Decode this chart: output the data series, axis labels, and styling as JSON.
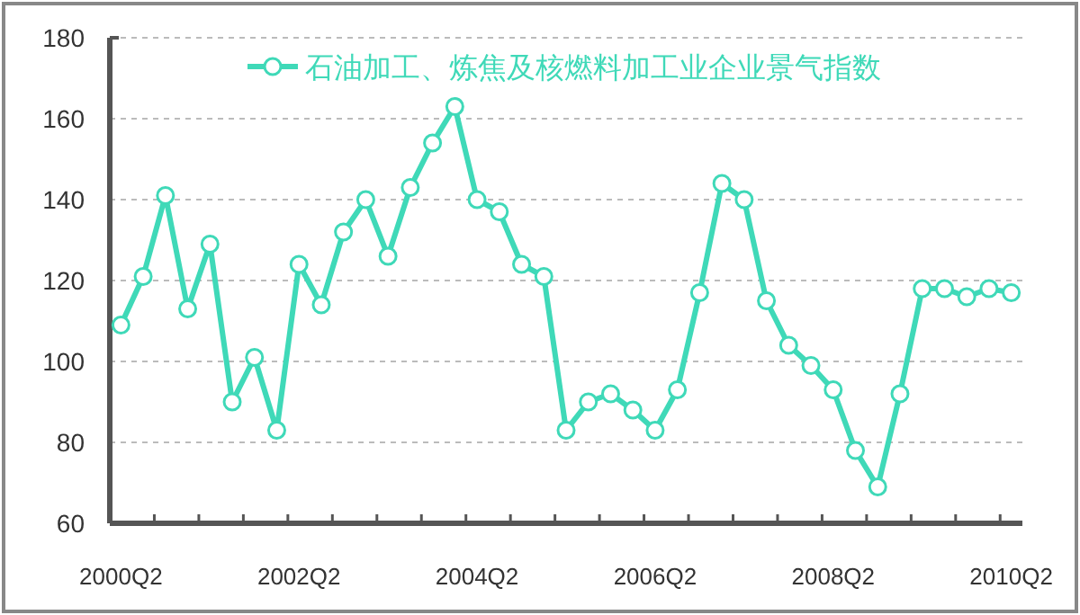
{
  "chart_data": {
    "type": "line",
    "categories": [
      "2000Q2",
      null,
      null,
      null,
      null,
      null,
      null,
      null,
      "2002Q2",
      null,
      null,
      null,
      null,
      null,
      null,
      null,
      "2004Q2",
      null,
      null,
      null,
      null,
      null,
      null,
      null,
      "2006Q2",
      null,
      null,
      null,
      null,
      null,
      null,
      null,
      "2008Q2",
      null,
      null,
      null,
      null,
      null,
      null,
      null,
      "2010Q2"
    ],
    "series": [
      {
        "name": "石油加工、炼焦及核燃料加工业企业景气指数",
        "color": "#3fd9b8",
        "values": [
          109,
          121,
          141,
          113,
          129,
          90,
          101,
          83,
          124,
          114,
          132,
          140,
          126,
          143,
          154,
          163,
          140,
          137,
          124,
          121,
          83,
          90,
          92,
          88,
          83,
          93,
          117,
          144,
          140,
          115,
          104,
          99,
          93,
          78,
          69,
          92,
          118,
          118,
          116,
          118,
          117
        ]
      }
    ],
    "ylim": [
      60,
      180
    ],
    "yticks": [
      60,
      80,
      100,
      120,
      140,
      160,
      180
    ],
    "grid": "y",
    "legend": "top",
    "marker": "circle",
    "line_style": "solid"
  }
}
